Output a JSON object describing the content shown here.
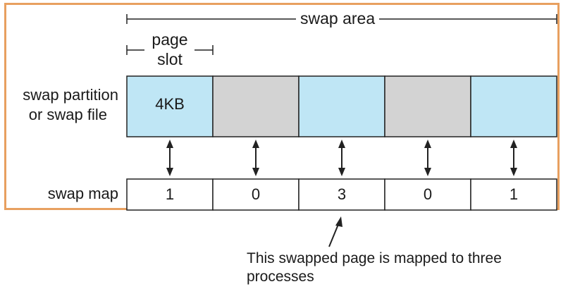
{
  "labels": {
    "swap_area": "swap area",
    "page_slot_line1": "page",
    "page_slot_line2": "slot",
    "swap_partition_line1": "swap partition",
    "swap_partition_line2": "or swap file",
    "swap_map": "swap map",
    "slot_size": "4KB"
  },
  "slots": [
    {
      "state": "used",
      "color": "#bfe6f5"
    },
    {
      "state": "free",
      "color": "#d3d3d3"
    },
    {
      "state": "used",
      "color": "#bfe6f5"
    },
    {
      "state": "free",
      "color": "#d3d3d3"
    },
    {
      "state": "used",
      "color": "#bfe6f5"
    }
  ],
  "swap_map_values": [
    "1",
    "0",
    "3",
    "0",
    "1"
  ],
  "annotation": {
    "line1": "This swapped page is mapped to three",
    "line2": "processes"
  },
  "colors": {
    "frame_border": "#e8a060",
    "used_slot": "#bfe6f5",
    "free_slot": "#d3d3d3",
    "stroke": "#222222"
  }
}
